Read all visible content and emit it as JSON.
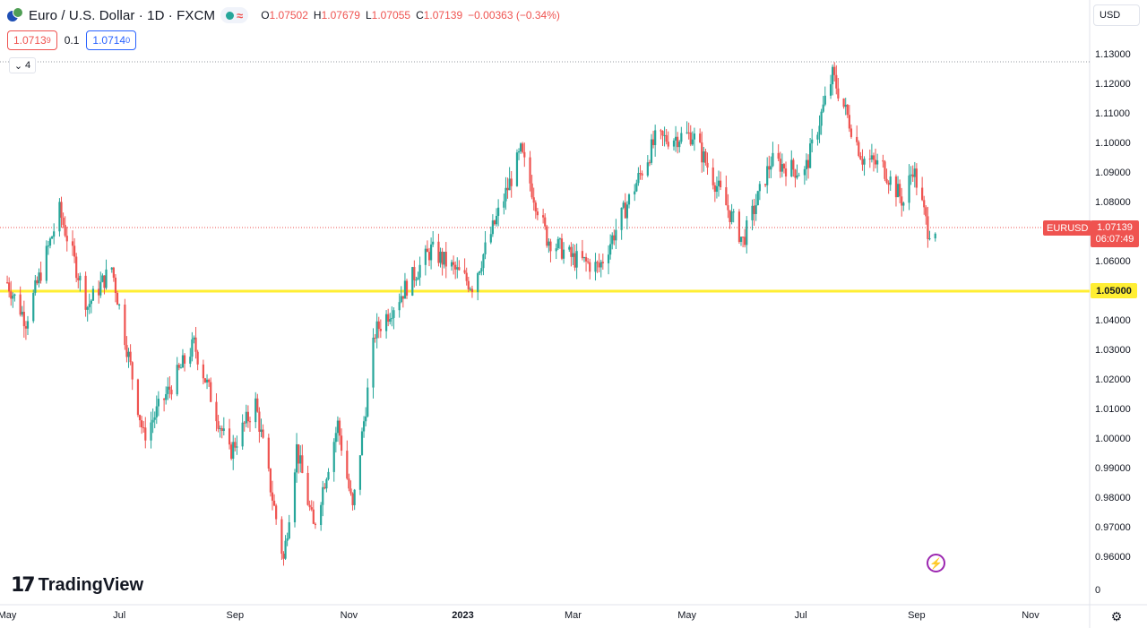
{
  "legend": {
    "title": "Euro / U.S. Dollar · 1D · FXCM",
    "open_label": "O",
    "open": "1.07502",
    "high_label": "H",
    "high": "1.07679",
    "low_label": "L",
    "low": "1.07055",
    "close_label": "C",
    "close": "1.07139",
    "change": "−0.00363 (−0.34%)",
    "market_status_icon": "wave-icon"
  },
  "trade": {
    "sell_price": "1.0713",
    "sell_pip": "9",
    "spread": "0.1",
    "buy_price": "1.0714",
    "buy_pip": "0"
  },
  "indicators_toggle": {
    "count": "4"
  },
  "currency": "USD",
  "y_axis_ticks": [
    "1.13000",
    "1.12000",
    "1.11000",
    "1.10000",
    "1.09000",
    "1.08000",
    "1.07000",
    "1.06000",
    "1.05000",
    "1.04000",
    "1.03000",
    "1.02000",
    "1.01000",
    "1.00000",
    "0.99000",
    "0.98000",
    "0.97000",
    "0.96000",
    "0"
  ],
  "x_axis_ticks": [
    "May",
    "Jul",
    "Sep",
    "Nov",
    "2023",
    "Mar",
    "May",
    "Jul",
    "Sep",
    "Nov"
  ],
  "horizontal_level": {
    "value": 1.05,
    "label": "1.05000",
    "color": "#ffee33"
  },
  "last_price_tag": {
    "symbol": "EURUSD",
    "price": "1.07139",
    "countdown": "06:07:49",
    "color": "#ef5350"
  },
  "branding": {
    "name": "TradingView"
  },
  "colors": {
    "up": "#26a69a",
    "down": "#ef5350"
  },
  "chart_data": {
    "type": "candlestick",
    "ylim": [
      0.955,
      1.13
    ],
    "anchors": [
      {
        "date": "2022-05-02",
        "price": 1.053
      },
      {
        "date": "2022-05-12",
        "price": 1.04
      },
      {
        "date": "2022-05-30",
        "price": 1.077
      },
      {
        "date": "2022-06-14",
        "price": 1.045
      },
      {
        "date": "2022-06-27",
        "price": 1.058
      },
      {
        "date": "2022-07-14",
        "price": 1.001
      },
      {
        "date": "2022-08-10",
        "price": 1.032
      },
      {
        "date": "2022-08-29",
        "price": 0.995
      },
      {
        "date": "2022-09-12",
        "price": 1.012
      },
      {
        "date": "2022-09-27",
        "price": 0.959
      },
      {
        "date": "2022-10-04",
        "price": 0.997
      },
      {
        "date": "2022-10-13",
        "price": 0.97
      },
      {
        "date": "2022-10-26",
        "price": 1.005
      },
      {
        "date": "2022-11-03",
        "price": 0.976
      },
      {
        "date": "2022-11-15",
        "price": 1.036
      },
      {
        "date": "2022-12-15",
        "price": 1.064
      },
      {
        "date": "2023-01-06",
        "price": 1.052
      },
      {
        "date": "2023-02-01",
        "price": 1.097
      },
      {
        "date": "2023-02-15",
        "price": 1.068
      },
      {
        "date": "2023-03-01",
        "price": 1.061
      },
      {
        "date": "2023-03-15",
        "price": 1.058
      },
      {
        "date": "2023-04-14",
        "price": 1.101
      },
      {
        "date": "2023-05-04",
        "price": 1.103
      },
      {
        "date": "2023-05-31",
        "price": 1.067
      },
      {
        "date": "2023-06-15",
        "price": 1.094
      },
      {
        "date": "2023-07-03",
        "price": 1.09
      },
      {
        "date": "2023-07-18",
        "price": 1.123
      },
      {
        "date": "2023-08-03",
        "price": 1.095
      },
      {
        "date": "2023-08-14",
        "price": 1.092
      },
      {
        "date": "2023-08-25",
        "price": 1.08
      },
      {
        "date": "2023-08-30",
        "price": 1.092
      },
      {
        "date": "2023-09-07",
        "price": 1.071
      },
      {
        "date": "2023-09-11",
        "price": 1.0714
      }
    ]
  }
}
